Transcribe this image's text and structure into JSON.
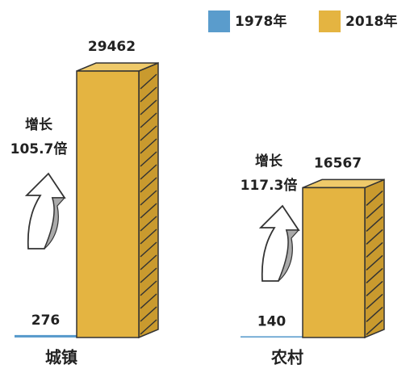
{
  "chart_data": {
    "type": "bar",
    "categories": [
      "城镇",
      "农村"
    ],
    "series": [
      {
        "name": "1978年",
        "color": "#5a9ccc",
        "values": [
          276,
          140
        ]
      },
      {
        "name": "2018年",
        "color": "#e4b441",
        "values": [
          29462,
          16567
        ]
      }
    ],
    "annotations": [
      [
        "增长",
        "105.7倍"
      ],
      [
        "增长",
        "117.3倍"
      ]
    ]
  }
}
